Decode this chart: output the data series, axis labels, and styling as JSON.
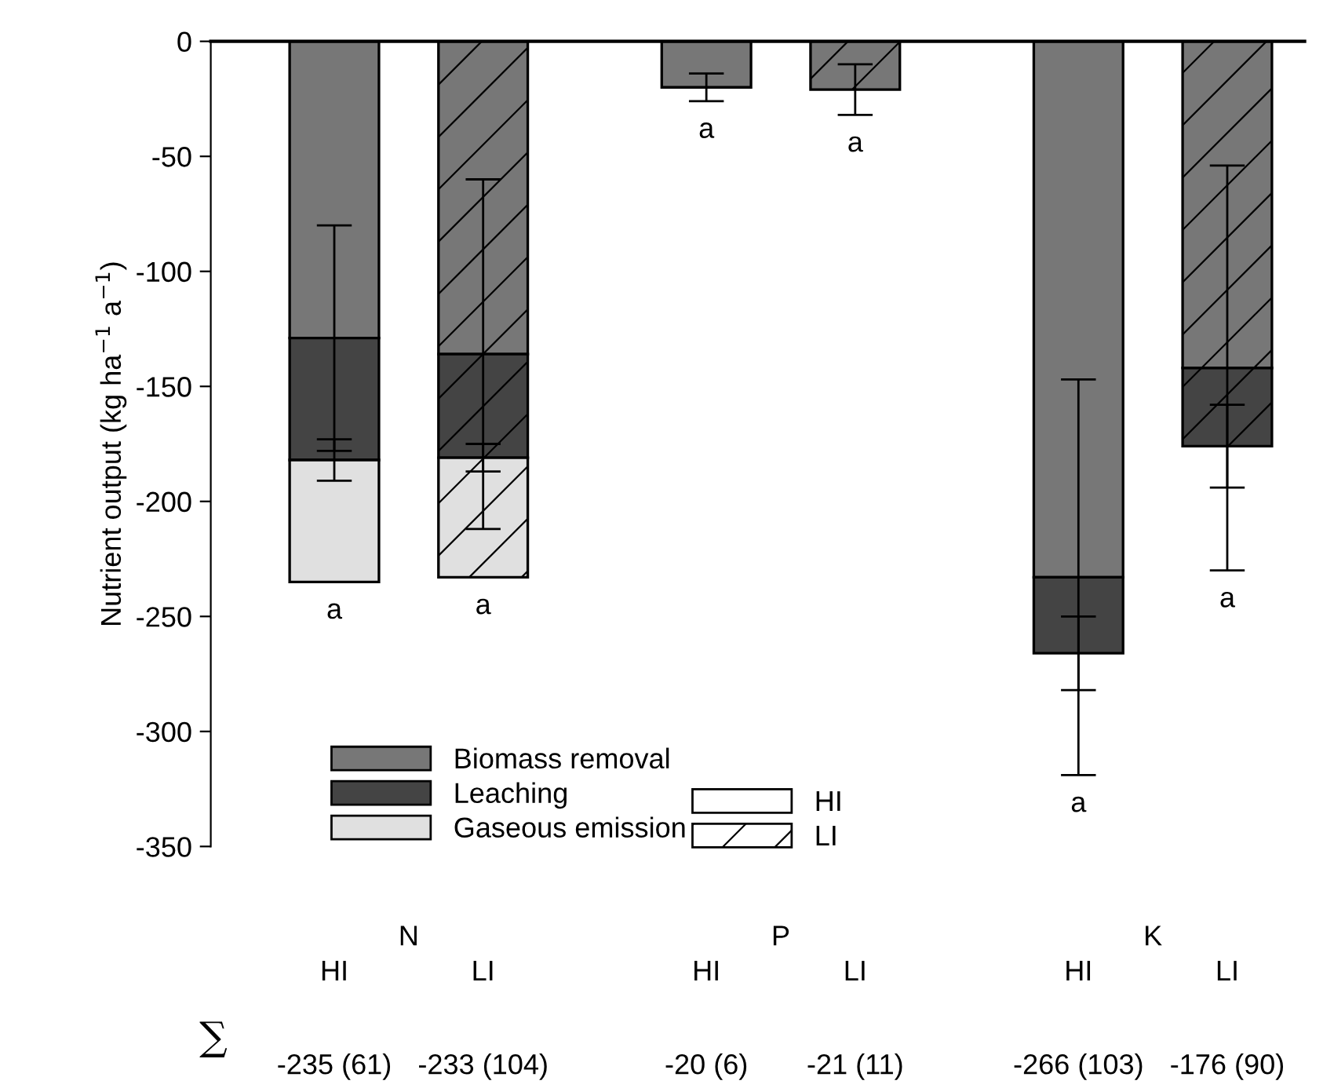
{
  "chart_data": {
    "type": "bar",
    "stacked": true,
    "ylabel": "Nutrient output (kg ha$^{−1}$ a$^{−1}$)",
    "categories": [
      "HI",
      "LI",
      "HI",
      "LI",
      "HI",
      "LI"
    ],
    "series": [
      {
        "name": "Biomass removal",
        "color": "#777777",
        "values": [
          -129,
          -136,
          -20,
          -21,
          -233,
          -142
        ],
        "errors": [
          49,
          76,
          6,
          11,
          86,
          88
        ]
      },
      {
        "name": "Leaching",
        "color": "#444444",
        "values": [
          -53,
          -45,
          null,
          null,
          -33,
          -34
        ],
        "errors": [
          9,
          6,
          null,
          null,
          16,
          18
        ]
      },
      {
        "name": "Gaseous emission",
        "color": "#e0e0e0",
        "values": [
          -53,
          -52,
          null,
          null,
          null,
          null
        ]
      }
    ],
    "ylim": [
      -350,
      0
    ],
    "yticks": [
      0,
      -50,
      -100,
      -150,
      -200,
      -250,
      -300,
      -350
    ],
    "ref_lines": [
      {
        "axis": "y",
        "value": 0
      }
    ],
    "annotations": [
      "a",
      "a",
      "a",
      "a",
      "a",
      "a",
      "N",
      "P",
      "K",
      "∑",
      "-235 (61)",
      "-233 (104)",
      "-20 (6)",
      "-21 (11)",
      "-266 (103)",
      "-176 (90)"
    ],
    "legend": "bottom left",
    "grid": false
  }
}
